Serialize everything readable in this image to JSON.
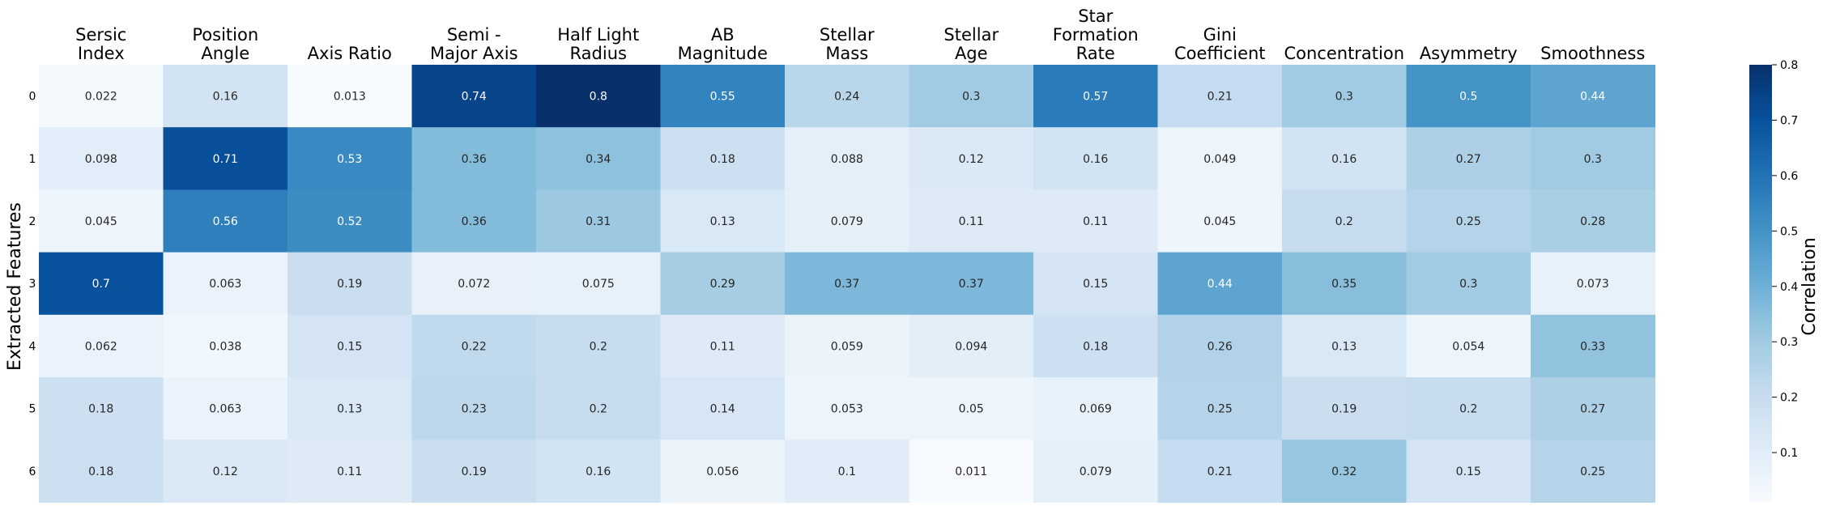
{
  "chart_data": {
    "type": "heatmap",
    "columns": [
      "Sersic\nIndex",
      "Position\nAngle",
      "Axis Ratio",
      "Semi -\nMajor Axis",
      "Half Light\nRadius",
      "AB\nMagnitude",
      "Stellar\nMass",
      "Stellar\nAge",
      "Star\nFormation\nRate",
      "Gini\nCoefficient",
      "Concentration",
      "Asymmetry",
      "Smoothness"
    ],
    "rows": [
      "0",
      "1",
      "2",
      "3",
      "4",
      "5",
      "6"
    ],
    "values": [
      [
        "0.022",
        "0.16",
        "0.013",
        "0.74",
        "0.8",
        "0.55",
        "0.24",
        "0.3",
        "0.57",
        "0.21",
        "0.3",
        "0.5",
        "0.44"
      ],
      [
        "0.098",
        "0.71",
        "0.53",
        "0.36",
        "0.34",
        "0.18",
        "0.088",
        "0.12",
        "0.16",
        "0.049",
        "0.16",
        "0.27",
        "0.3"
      ],
      [
        "0.045",
        "0.56",
        "0.52",
        "0.36",
        "0.31",
        "0.13",
        "0.079",
        "0.11",
        "0.11",
        "0.045",
        "0.2",
        "0.25",
        "0.28"
      ],
      [
        "0.7",
        "0.063",
        "0.19",
        "0.072",
        "0.075",
        "0.29",
        "0.37",
        "0.37",
        "0.15",
        "0.44",
        "0.35",
        "0.3",
        "0.073"
      ],
      [
        "0.062",
        "0.038",
        "0.15",
        "0.22",
        "0.2",
        "0.11",
        "0.059",
        "0.094",
        "0.18",
        "0.26",
        "0.13",
        "0.054",
        "0.33"
      ],
      [
        "0.18",
        "0.063",
        "0.13",
        "0.23",
        "0.2",
        "0.14",
        "0.053",
        "0.05",
        "0.069",
        "0.25",
        "0.19",
        "0.2",
        "0.27"
      ],
      [
        "0.18",
        "0.12",
        "0.11",
        "0.19",
        "0.16",
        "0.056",
        "0.1",
        "0.011",
        "0.079",
        "0.21",
        "0.32",
        "0.15",
        "0.25"
      ]
    ],
    "ylabel": "Extracted Features",
    "colorbar_label": "Correlation",
    "colorbar_ticks": [
      "0.1",
      "0.2",
      "0.3",
      "0.4",
      "0.5",
      "0.6",
      "0.7",
      "0.8"
    ],
    "vmin": 0.011,
    "vmax": 0.8,
    "colormap": "Blues",
    "colors": {
      "low": "#f7fbff",
      "high": "#08306b"
    }
  }
}
